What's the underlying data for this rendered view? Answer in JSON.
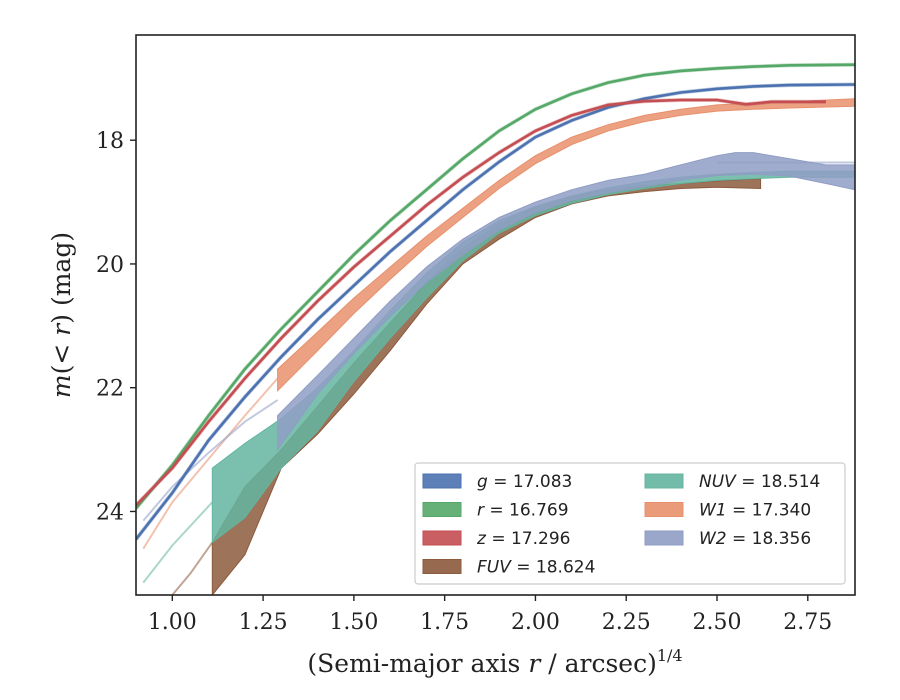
{
  "chart_data": {
    "type": "line",
    "xlabel": "(Semi-major axis r / arcsec)",
    "xlabel_parts": {
      "pre": "(Semi-major axis ",
      "var": "r",
      "post": " / arcsec)",
      "sup": "1/4"
    },
    "ylabel": "m(< r) (mag)",
    "ylabel_parts": {
      "var": "m",
      "open": "(< ",
      "inner": "r",
      "close": ") (mag)"
    },
    "xlim": [
      0.9,
      2.88
    ],
    "ylim": [
      25.35,
      16.3
    ],
    "y_inverted": true,
    "xticks": [
      1.0,
      1.25,
      1.5,
      1.75,
      2.0,
      2.25,
      2.5,
      2.75
    ],
    "xtick_labels": [
      "1.00",
      "1.25",
      "1.50",
      "1.75",
      "2.00",
      "2.25",
      "2.50",
      "2.75"
    ],
    "yticks": [
      18,
      20,
      22,
      24
    ],
    "ytick_labels": [
      "18",
      "20",
      "22",
      "24"
    ],
    "grid": false,
    "legend_position": "lower-right",
    "legend_columns": 2,
    "series": [
      {
        "name": "g",
        "label_var": "g",
        "label_val": " = 17.083",
        "color": "#4c72b0",
        "kind": "line",
        "points": [
          [
            0.9,
            24.45
          ],
          [
            1.0,
            23.7
          ],
          [
            1.1,
            22.85
          ],
          [
            1.2,
            22.15
          ],
          [
            1.3,
            21.5
          ],
          [
            1.4,
            20.9
          ],
          [
            1.5,
            20.35
          ],
          [
            1.6,
            19.8
          ],
          [
            1.7,
            19.3
          ],
          [
            1.8,
            18.8
          ],
          [
            1.9,
            18.35
          ],
          [
            2.0,
            17.95
          ],
          [
            2.1,
            17.68
          ],
          [
            2.2,
            17.47
          ],
          [
            2.3,
            17.33
          ],
          [
            2.4,
            17.23
          ],
          [
            2.5,
            17.17
          ],
          [
            2.6,
            17.13
          ],
          [
            2.7,
            17.11
          ],
          [
            2.88,
            17.1
          ]
        ]
      },
      {
        "name": "r",
        "label_var": "r",
        "label_val": " = 16.769",
        "color": "#55a868",
        "kind": "line",
        "points": [
          [
            0.9,
            23.95
          ],
          [
            1.0,
            23.25
          ],
          [
            1.1,
            22.45
          ],
          [
            1.2,
            21.7
          ],
          [
            1.3,
            21.05
          ],
          [
            1.4,
            20.45
          ],
          [
            1.5,
            19.85
          ],
          [
            1.6,
            19.3
          ],
          [
            1.7,
            18.8
          ],
          [
            1.8,
            18.3
          ],
          [
            1.9,
            17.85
          ],
          [
            2.0,
            17.5
          ],
          [
            2.1,
            17.25
          ],
          [
            2.2,
            17.07
          ],
          [
            2.3,
            16.95
          ],
          [
            2.4,
            16.88
          ],
          [
            2.5,
            16.84
          ],
          [
            2.6,
            16.81
          ],
          [
            2.7,
            16.79
          ],
          [
            2.88,
            16.78
          ]
        ]
      },
      {
        "name": "z",
        "label_var": "z",
        "label_val": " = 17.296",
        "color": "#c44e52",
        "kind": "line",
        "points": [
          [
            0.9,
            23.9
          ],
          [
            1.0,
            23.3
          ],
          [
            1.1,
            22.55
          ],
          [
            1.2,
            21.85
          ],
          [
            1.3,
            21.2
          ],
          [
            1.4,
            20.6
          ],
          [
            1.5,
            20.05
          ],
          [
            1.6,
            19.55
          ],
          [
            1.7,
            19.05
          ],
          [
            1.8,
            18.6
          ],
          [
            1.9,
            18.2
          ],
          [
            2.0,
            17.85
          ],
          [
            2.1,
            17.6
          ],
          [
            2.2,
            17.43
          ],
          [
            2.3,
            17.37
          ],
          [
            2.4,
            17.35
          ],
          [
            2.5,
            17.35
          ],
          [
            2.58,
            17.42
          ],
          [
            2.65,
            17.38
          ],
          [
            2.8,
            17.38
          ]
        ]
      },
      {
        "name": "FUV",
        "label_var": "FUV",
        "label_val": " = 18.624",
        "color": "#8c5a3c",
        "kind": "band",
        "x0": 1.11,
        "upper": [
          [
            1.11,
            24.5
          ],
          [
            1.2,
            23.6
          ],
          [
            1.3,
            23.0
          ],
          [
            1.4,
            22.3
          ],
          [
            1.5,
            21.6
          ],
          [
            1.6,
            20.95
          ],
          [
            1.7,
            20.3
          ],
          [
            1.8,
            19.75
          ],
          [
            1.9,
            19.35
          ],
          [
            2.0,
            19.08
          ],
          [
            2.1,
            18.9
          ],
          [
            2.2,
            18.8
          ],
          [
            2.3,
            18.73
          ],
          [
            2.4,
            18.7
          ],
          [
            2.5,
            18.66
          ],
          [
            2.62,
            18.62
          ]
        ],
        "lower": [
          [
            1.11,
            25.35
          ],
          [
            1.2,
            24.7
          ],
          [
            1.3,
            23.3
          ],
          [
            1.4,
            22.75
          ],
          [
            1.5,
            22.1
          ],
          [
            1.6,
            21.4
          ],
          [
            1.7,
            20.65
          ],
          [
            1.8,
            20.0
          ],
          [
            1.9,
            19.6
          ],
          [
            2.0,
            19.25
          ],
          [
            2.1,
            19.03
          ],
          [
            2.2,
            18.9
          ],
          [
            2.3,
            18.83
          ],
          [
            2.4,
            18.78
          ],
          [
            2.5,
            18.76
          ],
          [
            2.62,
            18.78
          ]
        ],
        "faint": [
          [
            1.0,
            25.35
          ],
          [
            1.05,
            25.0
          ],
          [
            1.11,
            24.5
          ]
        ]
      },
      {
        "name": "NUV",
        "label_var": "NUV",
        "label_val": " = 18.514",
        "color": "#64b5a0",
        "kind": "band",
        "x0": 1.11,
        "upper": [
          [
            1.11,
            23.3
          ],
          [
            1.2,
            22.9
          ],
          [
            1.3,
            22.5
          ],
          [
            1.4,
            22.0
          ],
          [
            1.5,
            21.4
          ],
          [
            1.6,
            20.75
          ],
          [
            1.7,
            20.15
          ],
          [
            1.8,
            19.65
          ],
          [
            1.9,
            19.3
          ],
          [
            2.0,
            19.07
          ],
          [
            2.1,
            18.9
          ],
          [
            2.2,
            18.77
          ],
          [
            2.3,
            18.67
          ],
          [
            2.4,
            18.6
          ],
          [
            2.5,
            18.55
          ],
          [
            2.6,
            18.52
          ],
          [
            2.7,
            18.5
          ],
          [
            2.88,
            18.5
          ]
        ],
        "lower": [
          [
            1.11,
            24.5
          ],
          [
            1.2,
            24.1
          ],
          [
            1.3,
            23.3
          ],
          [
            1.4,
            22.7
          ],
          [
            1.5,
            21.9
          ],
          [
            1.6,
            21.2
          ],
          [
            1.7,
            20.55
          ],
          [
            1.8,
            19.95
          ],
          [
            1.9,
            19.5
          ],
          [
            2.0,
            19.22
          ],
          [
            2.1,
            19.02
          ],
          [
            2.2,
            18.88
          ],
          [
            2.3,
            18.78
          ],
          [
            2.4,
            18.7
          ],
          [
            2.5,
            18.65
          ],
          [
            2.6,
            18.62
          ],
          [
            2.7,
            18.6
          ],
          [
            2.88,
            18.6
          ]
        ],
        "faint": [
          [
            0.92,
            25.15
          ],
          [
            1.0,
            24.55
          ],
          [
            1.11,
            23.85
          ]
        ]
      },
      {
        "name": "W1",
        "label_var": "W1",
        "label_val": " = 17.340",
        "color": "#e8906c",
        "kind": "band",
        "x0": 1.29,
        "upper": [
          [
            1.29,
            21.7
          ],
          [
            1.4,
            21.1
          ],
          [
            1.5,
            20.55
          ],
          [
            1.6,
            20.05
          ],
          [
            1.7,
            19.55
          ],
          [
            1.8,
            19.1
          ],
          [
            1.9,
            18.65
          ],
          [
            2.0,
            18.25
          ],
          [
            2.1,
            17.95
          ],
          [
            2.2,
            17.75
          ],
          [
            2.3,
            17.6
          ],
          [
            2.4,
            17.5
          ],
          [
            2.5,
            17.43
          ],
          [
            2.6,
            17.4
          ],
          [
            2.7,
            17.38
          ],
          [
            2.88,
            17.33
          ]
        ],
        "lower": [
          [
            1.29,
            22.05
          ],
          [
            1.4,
            21.4
          ],
          [
            1.5,
            20.8
          ],
          [
            1.6,
            20.25
          ],
          [
            1.7,
            19.72
          ],
          [
            1.8,
            19.25
          ],
          [
            1.9,
            18.78
          ],
          [
            2.0,
            18.38
          ],
          [
            2.1,
            18.07
          ],
          [
            2.2,
            17.85
          ],
          [
            2.3,
            17.7
          ],
          [
            2.4,
            17.6
          ],
          [
            2.5,
            17.53
          ],
          [
            2.6,
            17.5
          ],
          [
            2.7,
            17.48
          ],
          [
            2.88,
            17.45
          ]
        ],
        "faint": [
          [
            0.92,
            24.6
          ],
          [
            1.0,
            23.85
          ],
          [
            1.1,
            23.15
          ],
          [
            1.2,
            22.45
          ],
          [
            1.29,
            21.85
          ]
        ]
      },
      {
        "name": "W2",
        "label_var": "W2",
        "label_val": " = 18.356",
        "color": "#8f9dc4",
        "kind": "band",
        "x0": 1.29,
        "upper": [
          [
            1.29,
            22.45
          ],
          [
            1.4,
            21.8
          ],
          [
            1.5,
            21.2
          ],
          [
            1.6,
            20.6
          ],
          [
            1.7,
            20.05
          ],
          [
            1.8,
            19.6
          ],
          [
            1.9,
            19.25
          ],
          [
            2.0,
            19.0
          ],
          [
            2.1,
            18.8
          ],
          [
            2.2,
            18.65
          ],
          [
            2.3,
            18.55
          ],
          [
            2.4,
            18.4
          ],
          [
            2.5,
            18.25
          ],
          [
            2.55,
            18.2
          ],
          [
            2.6,
            18.2
          ],
          [
            2.7,
            18.3
          ],
          [
            2.8,
            18.4
          ],
          [
            2.88,
            18.4
          ]
        ],
        "lower": [
          [
            1.29,
            23.0
          ],
          [
            1.4,
            22.1
          ],
          [
            1.5,
            21.45
          ],
          [
            1.6,
            20.85
          ],
          [
            1.7,
            20.3
          ],
          [
            1.8,
            19.85
          ],
          [
            1.9,
            19.45
          ],
          [
            2.0,
            19.17
          ],
          [
            2.1,
            18.97
          ],
          [
            2.2,
            18.85
          ],
          [
            2.3,
            18.75
          ],
          [
            2.4,
            18.65
          ],
          [
            2.5,
            18.57
          ],
          [
            2.6,
            18.55
          ],
          [
            2.7,
            18.58
          ],
          [
            2.8,
            18.7
          ],
          [
            2.88,
            18.8
          ]
        ],
        "faint": [
          [
            0.92,
            24.15
          ],
          [
            1.0,
            23.6
          ],
          [
            1.1,
            23.05
          ],
          [
            1.2,
            22.55
          ],
          [
            1.29,
            22.2
          ]
        ],
        "tail": [
          [
            2.5,
            18.36
          ],
          [
            2.88,
            18.36
          ]
        ]
      }
    ]
  }
}
